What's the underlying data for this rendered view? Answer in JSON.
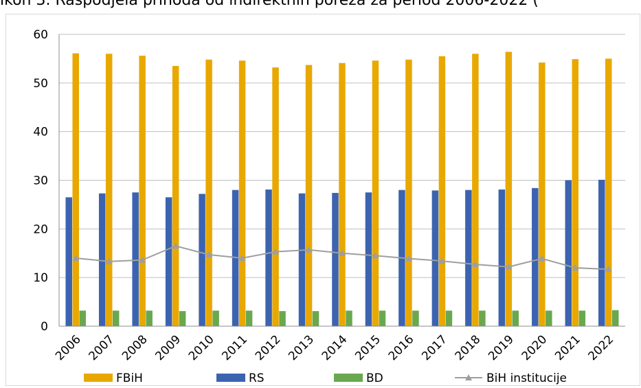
{
  "caption": "ikon 3. Raspodjela prihoda od indirektnih poreza za period 2006-2022 (",
  "colors": {
    "fbih": "#E8A800",
    "rs": "#3B63B0",
    "bd": "#6AA84F",
    "bih": "#9E9E9E",
    "grid": "#BFBFBF"
  },
  "chart_data": {
    "type": "bar",
    "categories": [
      "2006",
      "2007",
      "2008",
      "2009",
      "2010",
      "2011",
      "2012",
      "2013",
      "2014",
      "2015",
      "2016",
      "2017",
      "2018",
      "2019",
      "2020",
      "2021",
      "2022"
    ],
    "series": [
      {
        "name": "FBiH",
        "kind": "bar",
        "values": [
          56.1,
          56.0,
          55.6,
          53.5,
          54.8,
          54.6,
          53.2,
          53.7,
          54.1,
          54.6,
          54.8,
          55.5,
          56.0,
          56.4,
          54.2,
          54.9,
          55.0
        ]
      },
      {
        "name": "RS",
        "kind": "bar",
        "values": [
          26.5,
          27.3,
          27.5,
          26.5,
          27.2,
          28.0,
          28.1,
          27.3,
          27.4,
          27.5,
          28.0,
          27.9,
          28.0,
          28.1,
          28.4,
          30.0,
          30.1
        ]
      },
      {
        "name": "BD",
        "kind": "bar",
        "values": [
          3.2,
          3.2,
          3.2,
          3.1,
          3.2,
          3.2,
          3.1,
          3.1,
          3.2,
          3.2,
          3.2,
          3.2,
          3.2,
          3.2,
          3.2,
          3.2,
          3.3
        ]
      },
      {
        "name": "BiH institucije",
        "kind": "line",
        "values": [
          14.0,
          13.3,
          13.6,
          16.5,
          14.7,
          14.0,
          15.3,
          15.7,
          15.0,
          14.5,
          13.9,
          13.4,
          12.7,
          12.2,
          13.9,
          12.0,
          11.7
        ]
      }
    ],
    "ylim": [
      0,
      60
    ],
    "yticks": [
      0,
      10,
      20,
      30,
      40,
      50,
      60
    ],
    "grid": true,
    "legend_position": "bottom"
  }
}
